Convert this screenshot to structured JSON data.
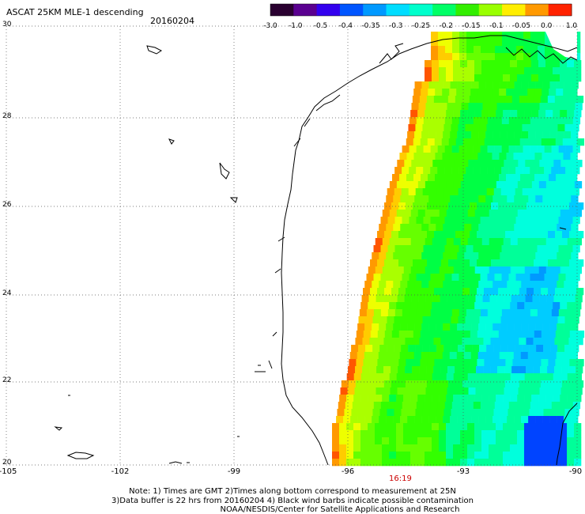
{
  "header": {
    "title": "ASCAT 25KM MLE-1 descending",
    "date": "20160204"
  },
  "colorbar": {
    "labels": [
      "-3.0",
      "-1.0",
      "-0.5",
      "-0.4",
      "-0.35",
      "-0.3",
      "-0.25",
      "-0.2",
      "-0.15",
      "-0.1",
      "-0.05",
      "0.0",
      "1.0"
    ],
    "colors": [
      "#2a0030",
      "#5a0090",
      "#3300ee",
      "#0055ff",
      "#0099ff",
      "#00ddff",
      "#00ffcc",
      "#00ff66",
      "#33ee00",
      "#99ff00",
      "#ffee00",
      "#ff9900",
      "#ff2200"
    ]
  },
  "axes": {
    "lat_labels": [
      "30",
      "28",
      "26",
      "24",
      "22",
      "20"
    ],
    "lon_labels": [
      "-105",
      "-102",
      "-99",
      "-96",
      "-93",
      "-90"
    ]
  },
  "time_label": "16:19",
  "notes": {
    "line1": "Note: 1) Times are GMT 2)Times along bottom correspond to measurement at 25N",
    "line2": "3)Data buffer is 22 hrs from 20160204 4) Black wind barbs indicate possible contamination",
    "line3": "NOAA/NESDIS/Center for Satellite Applications and Research"
  }
}
